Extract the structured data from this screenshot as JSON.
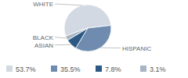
{
  "chart_data": {
    "type": "pie",
    "categories": [
      "WHITE",
      "HISPANIC",
      "ASIAN",
      "BLACK"
    ],
    "values": [
      53.7,
      35.5,
      7.8,
      3.1
    ],
    "value_labels": [
      "53.7%",
      "35.5%",
      "7.8%",
      "3.1%"
    ],
    "colors": [
      "#d3d9e3",
      "#6f8cb0",
      "#2c5a84",
      "#a8b5c5"
    ],
    "legend": "bottom"
  }
}
